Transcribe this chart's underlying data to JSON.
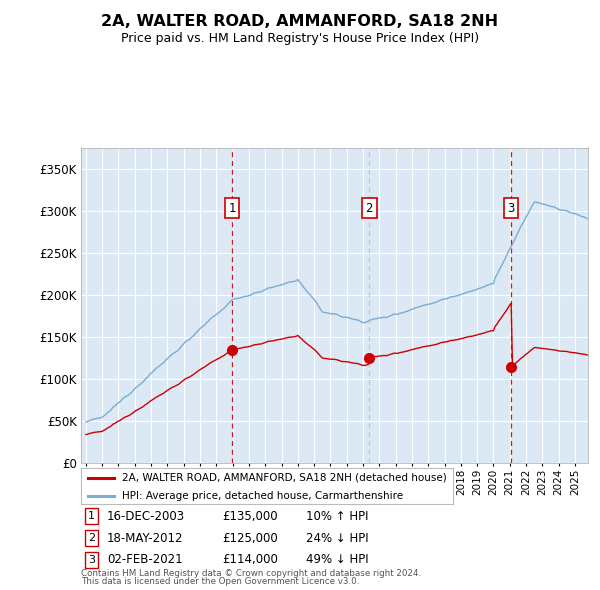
{
  "title": "2A, WALTER ROAD, AMMANFORD, SA18 2NH",
  "subtitle": "Price paid vs. HM Land Registry's House Price Index (HPI)",
  "ytick_values": [
    0,
    50000,
    100000,
    150000,
    200000,
    250000,
    300000,
    350000
  ],
  "ylim": [
    0,
    375000
  ],
  "xlim": [
    1994.7,
    2025.8
  ],
  "sales": [
    {
      "label": "1",
      "date": "16-DEC-2003",
      "price": 135000,
      "year": 2003.97,
      "hpi_pct": "10% ↑ HPI"
    },
    {
      "label": "2",
      "date": "18-MAY-2012",
      "price": 125000,
      "year": 2012.38,
      "hpi_pct": "24% ↓ HPI"
    },
    {
      "label": "3",
      "date": "02-FEB-2021",
      "price": 114000,
      "year": 2021.09,
      "hpi_pct": "49% ↓ HPI"
    }
  ],
  "legend_label_red": "2A, WALTER ROAD, AMMANFORD, SA18 2NH (detached house)",
  "legend_label_blue": "HPI: Average price, detached house, Carmarthenshire",
  "footnote1": "Contains HM Land Registry data © Crown copyright and database right 2024.",
  "footnote2": "This data is licensed under the Open Government Licence v3.0.",
  "background_color": "#ffffff",
  "plot_bg_color": "#dce9f5",
  "grid_color": "#ffffff",
  "red_line_color": "#cc0000",
  "blue_line_color": "#7aadd4",
  "sale1_vline_color": "#cc0000",
  "sale2_vline_color": "#aaaacc",
  "sale3_vline_color": "#cc0000"
}
